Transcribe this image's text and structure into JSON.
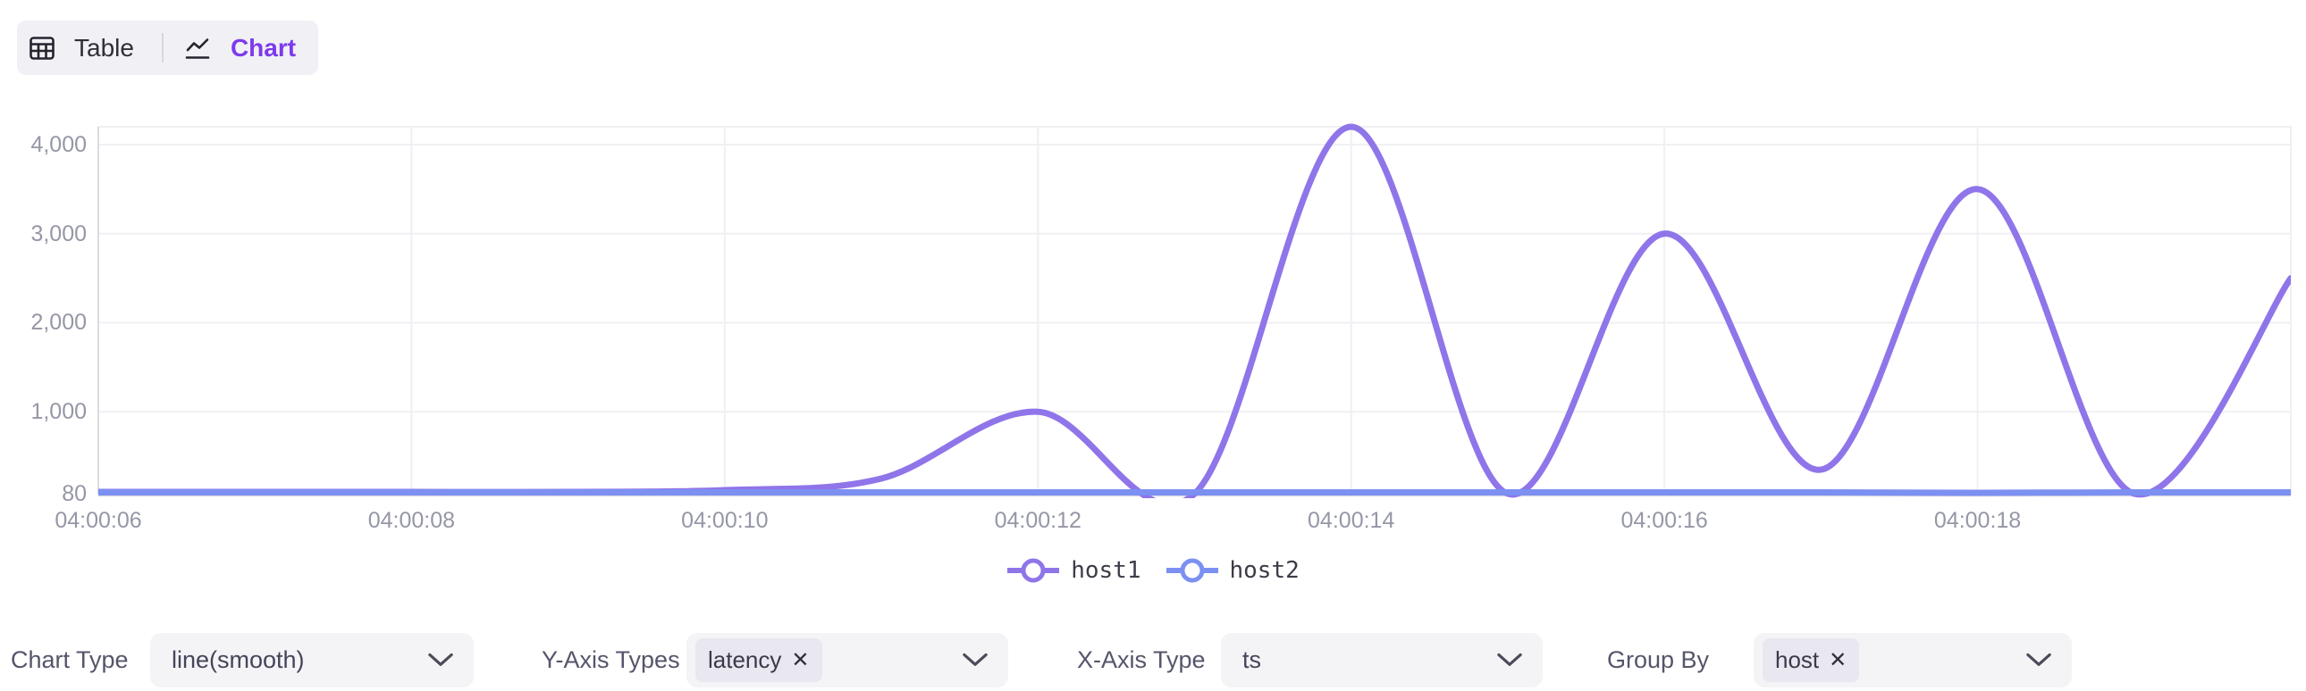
{
  "view_toggle": {
    "table_label": "Table",
    "chart_label": "Chart",
    "active_view": "Chart"
  },
  "chart_data": {
    "type": "line",
    "smooth": true,
    "show_symbols": false,
    "title": "",
    "xlabel": "",
    "ylabel": "",
    "grid": true,
    "legend_position": "bottom",
    "x": [
      "04:00:06",
      "04:00:07",
      "04:00:08",
      "04:00:09",
      "04:00:10",
      "04:00:11",
      "04:00:12",
      "04:00:13",
      "04:00:14",
      "04:00:15",
      "04:00:16",
      "04:00:17",
      "04:00:18",
      "04:00:19",
      "04:00:20"
    ],
    "x_tick_labels": [
      "04:00:06",
      "04:00:08",
      "04:00:10",
      "04:00:12",
      "04:00:14",
      "04:00:16",
      "04:00:18"
    ],
    "x_tick_indices": [
      0,
      2,
      4,
      6,
      8,
      10,
      12
    ],
    "series": [
      {
        "name": "host1",
        "color": "#8F75E9",
        "values": [
          100,
          100,
          100,
          100,
          120,
          250,
          1000,
          80,
          4200,
          80,
          3000,
          350,
          3500,
          80,
          2500
        ]
      },
      {
        "name": "host2",
        "color": "#7C90F1",
        "values": [
          95,
          95,
          95,
          95,
          95,
          95,
          95,
          95,
          95,
          95,
          95,
          95,
          90,
          95,
          95
        ]
      }
    ],
    "y_ticks": [
      {
        "value": 80,
        "label": "80"
      },
      {
        "value": 1000,
        "label": "1,000"
      },
      {
        "value": 2000,
        "label": "2,000"
      },
      {
        "value": 3000,
        "label": "3,000"
      },
      {
        "value": 4000,
        "label": "4,000"
      }
    ],
    "ylim": [
      80,
      4200
    ]
  },
  "controls": [
    {
      "label": "Chart Type",
      "type": "select",
      "value": "line(smooth)"
    },
    {
      "label": "Y-Axis Types",
      "type": "multiselect",
      "tags": [
        "latency"
      ]
    },
    {
      "label": "X-Axis Type",
      "type": "select",
      "value": "ts"
    },
    {
      "label": "Group By",
      "type": "multiselect",
      "tags": [
        "host"
      ]
    }
  ],
  "icons": {
    "remove_tag": "✕"
  },
  "colors": {
    "accent": "#7C3AED",
    "grid_line": "#F0F0F4",
    "axis_line": "#DBDBE3",
    "tick_text": "#9597A6"
  }
}
